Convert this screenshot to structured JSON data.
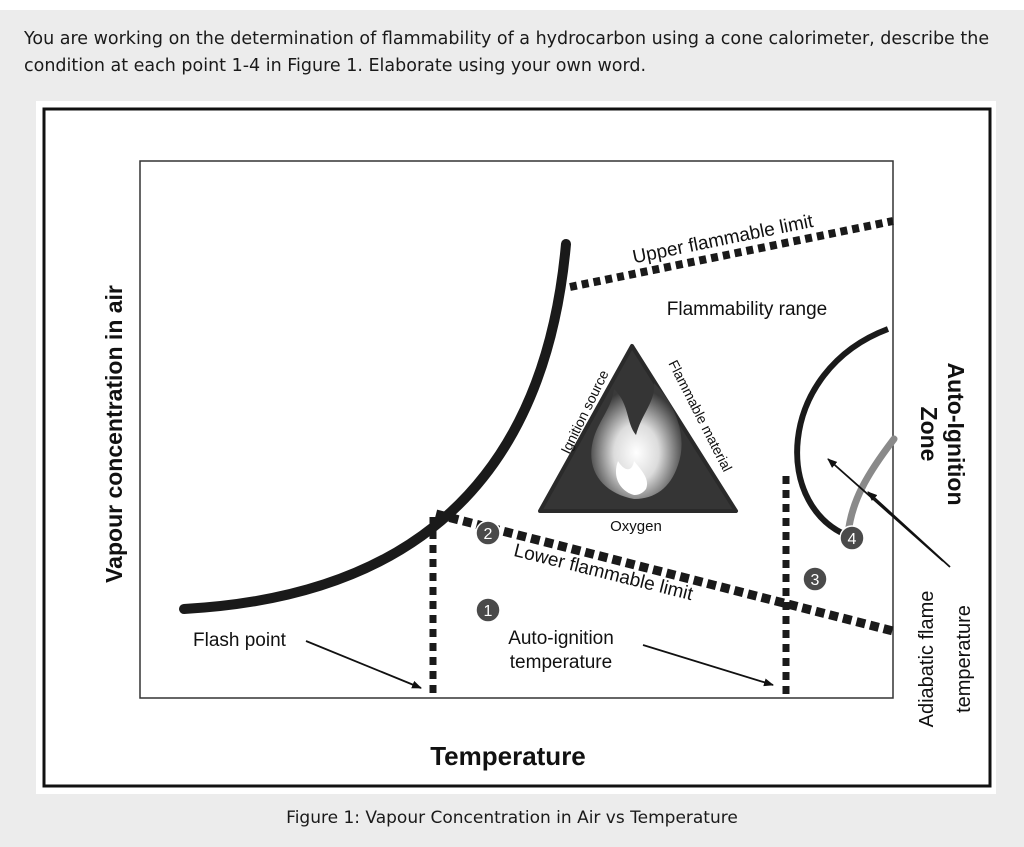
{
  "question": "You are working on the determination of flammability of a hydrocarbon using a cone calorimeter, describe the condition at each point 1-4 in Figure 1.  Elaborate using your own word.",
  "caption": "Figure 1: Vapour Concentration in Air vs Temperature",
  "figure": {
    "y_axis_label": "Vapour concentration in air",
    "x_axis_label": "Temperature",
    "upper_limit_label": "Upper flammable limit",
    "lower_limit_label": "Lower flammable limit",
    "flammability_range_label": "Flammability range",
    "flash_point_label": "Flash point",
    "auto_ignition_temp_line1": "Auto-ignition",
    "auto_ignition_temp_line2": "temperature",
    "auto_ignition_zone_line1": "Auto-Ignition",
    "auto_ignition_zone_line2": "Zone",
    "adiabatic_line1": "Adiabatic flame",
    "adiabatic_line2": "temperature",
    "triangle_left": "Ignition source",
    "triangle_right": "Flammable material",
    "triangle_bottom": "Oxygen",
    "point_1": "1",
    "point_2": "2",
    "point_3": "3",
    "point_4": "4"
  },
  "colors": {
    "panel_background": "#ececec",
    "line": "#1a1a1a",
    "triangle": "#3a3a3a",
    "adiabatic_curve": "#8a8a8a",
    "marker_fill": "#4a4a4a"
  }
}
